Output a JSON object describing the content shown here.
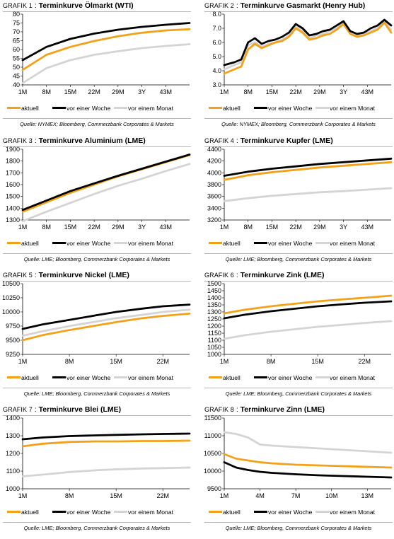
{
  "legend_labels": [
    "aktuell",
    "vor einer Woche",
    "vor einem Monat"
  ],
  "series_colors": {
    "aktuell": "#f4a11a",
    "vor einer Woche": "#000000",
    "vor einem Monat": "#d4d4d4"
  },
  "panels": [
    {
      "prefix": "GRAFIK 1",
      "title": "Terminkurve Ölmarkt (WTI)",
      "source": "Quelle: NYMEX; Bloomberg, Commerzbank Corporates & Markets",
      "chart_data": {
        "type": "line",
        "x": [
          1,
          8,
          15,
          22,
          29,
          36,
          43,
          50
        ],
        "x_tick_labels": [
          "1M",
          "8M",
          "15M",
          "22M",
          "29M",
          "3Y",
          "43M"
        ],
        "ylim": [
          40,
          80
        ],
        "y_ticks": [
          40,
          45,
          50,
          55,
          60,
          65,
          70,
          75,
          80
        ],
        "series": [
          {
            "name": "aktuell",
            "values": [
              48.5,
              57.0,
              61.5,
              64.8,
              67.5,
              69.5,
              70.8,
              71.5
            ]
          },
          {
            "name": "vor einer Woche",
            "values": [
              54.0,
              61.5,
              66.0,
              69.0,
              71.2,
              72.8,
              74.0,
              75.0
            ]
          },
          {
            "name": "vor einem Monat",
            "values": [
              41.0,
              49.5,
              54.0,
              57.0,
              59.0,
              60.8,
              62.0,
              63.0
            ]
          }
        ]
      }
    },
    {
      "prefix": "GRAFIK 2",
      "title": "Terminkurve Gasmarkt (Henry Hub)",
      "source": "Quelle: NYMEX; Bloomberg, Commerzbank Corporates & Markets",
      "chart_data": {
        "type": "line",
        "x": [
          1,
          4,
          6,
          8,
          10,
          12,
          14,
          16,
          18,
          20,
          22,
          24,
          26,
          28,
          30,
          32,
          34,
          36,
          38,
          40,
          42,
          44,
          46,
          48,
          50
        ],
        "x_tick_labels": [
          "1M",
          "8M",
          "15M",
          "22M",
          "29M",
          "3Y",
          "43M"
        ],
        "ylim": [
          3.0,
          8.0
        ],
        "y_ticks": [
          3.0,
          4.0,
          5.0,
          6.0,
          7.0,
          8.0
        ],
        "series": [
          {
            "name": "aktuell",
            "values": [
              3.8,
              4.1,
              4.3,
              5.5,
              5.9,
              5.6,
              5.8,
              6.0,
              6.1,
              6.4,
              7.0,
              6.7,
              6.2,
              6.3,
              6.5,
              6.6,
              6.9,
              7.3,
              6.6,
              6.4,
              6.5,
              6.7,
              6.9,
              7.4,
              6.7
            ]
          },
          {
            "name": "vor einer Woche",
            "values": [
              4.4,
              4.6,
              4.8,
              6.0,
              6.3,
              5.9,
              6.1,
              6.2,
              6.4,
              6.7,
              7.3,
              7.0,
              6.5,
              6.6,
              6.8,
              6.9,
              7.2,
              7.5,
              6.8,
              6.6,
              6.7,
              7.0,
              7.2,
              7.6,
              7.2
            ]
          },
          {
            "name": "vor einem Monat",
            "values": [
              4.1,
              4.4,
              4.6,
              5.8,
              6.0,
              5.7,
              5.9,
              6.0,
              6.2,
              6.5,
              7.1,
              6.8,
              6.3,
              6.5,
              6.6,
              6.8,
              7.0,
              7.4,
              6.7,
              6.5,
              6.6,
              6.8,
              7.0,
              7.5,
              6.9
            ]
          }
        ]
      }
    },
    {
      "prefix": "GRAFIK 3",
      "title": "Terminkurve Aluminium (LME)",
      "source": "Quelle: LME; Bloomberg, Commerzbank Corporates & Markets",
      "chart_data": {
        "type": "line",
        "x": [
          1,
          8,
          15,
          22,
          29,
          36,
          43,
          50
        ],
        "x_tick_labels": [
          "1M",
          "8M",
          "15M",
          "22M",
          "29M",
          "3Y",
          "43M"
        ],
        "ylim": [
          1300,
          1900
        ],
        "y_ticks": [
          1300,
          1400,
          1500,
          1600,
          1700,
          1800,
          1900
        ],
        "series": [
          {
            "name": "aktuell",
            "values": [
              1370,
              1450,
              1530,
              1600,
              1670,
              1730,
              1790,
              1850
            ]
          },
          {
            "name": "vor einer Woche",
            "values": [
              1385,
              1465,
              1545,
              1610,
              1675,
              1735,
              1795,
              1855
            ]
          },
          {
            "name": "vor einem Monat",
            "values": [
              1290,
              1370,
              1445,
              1520,
              1590,
              1650,
              1715,
              1775
            ]
          }
        ]
      }
    },
    {
      "prefix": "GRAFIK 4",
      "title": "Terminkurve Kupfer (LME)",
      "source": "Quelle: LME; Bloomberg, Commerzbank Corporates & Markets",
      "chart_data": {
        "type": "line",
        "x": [
          1,
          8,
          15,
          22,
          29,
          36,
          43,
          50
        ],
        "x_tick_labels": [
          "1M",
          "8M",
          "15M",
          "22M",
          "29M",
          "3Y",
          "43M"
        ],
        "ylim": [
          3200,
          4400
        ],
        "y_ticks": [
          3200,
          3400,
          3600,
          3800,
          4000,
          4200,
          4400
        ],
        "series": [
          {
            "name": "aktuell",
            "values": [
              3880,
              3960,
              4010,
              4050,
              4090,
              4120,
              4150,
              4180
            ]
          },
          {
            "name": "vor einer Woche",
            "values": [
              3950,
              4020,
              4070,
              4110,
              4150,
              4180,
              4210,
              4240
            ]
          },
          {
            "name": "vor einem Monat",
            "values": [
              3520,
              3570,
              3610,
              3640,
              3670,
              3690,
              3715,
              3740
            ]
          }
        ]
      }
    },
    {
      "prefix": "GRAFIK 5",
      "title": "Terminkurve Nickel (LME)",
      "source": "Quelle: LME; Bloomberg, Commerzbank Corporates & Markets",
      "chart_data": {
        "type": "line",
        "x": [
          1,
          4,
          8,
          12,
          15,
          19,
          22,
          26
        ],
        "x_tick_labels": [
          "1M",
          "8M",
          "15M",
          "22M"
        ],
        "x_tick_positions": [
          1,
          8,
          15,
          22
        ],
        "ylim": [
          9250,
          10500
        ],
        "y_ticks": [
          9250,
          9500,
          9750,
          10000,
          10250,
          10500
        ],
        "series": [
          {
            "name": "aktuell",
            "values": [
              9500,
              9590,
              9680,
              9760,
              9820,
              9890,
              9930,
              9970
            ]
          },
          {
            "name": "vor einer Woche",
            "values": [
              9700,
              9780,
              9860,
              9940,
              10000,
              10060,
              10100,
              10130
            ]
          },
          {
            "name": "vor einem Monat",
            "values": [
              9580,
              9660,
              9750,
              9830,
              9890,
              9950,
              10000,
              10040
            ]
          }
        ]
      }
    },
    {
      "prefix": "GRAFIK 6",
      "title": "Terminkurve Zink (LME)",
      "source": "Quelle: LME; Bloomberg, Commerzbank Corporates & Markets",
      "chart_data": {
        "type": "line",
        "x": [
          1,
          4,
          8,
          12,
          15,
          19,
          22,
          26
        ],
        "x_tick_labels": [
          "1M",
          "8M",
          "15M",
          "22M"
        ],
        "x_tick_positions": [
          1,
          8,
          15,
          22
        ],
        "ylim": [
          1000,
          1500
        ],
        "y_ticks": [
          1000,
          1050,
          1100,
          1150,
          1200,
          1250,
          1300,
          1350,
          1400,
          1450,
          1500
        ],
        "series": [
          {
            "name": "aktuell",
            "values": [
              1290,
              1315,
              1340,
              1360,
              1375,
              1390,
              1400,
              1415
            ]
          },
          {
            "name": "vor einer Woche",
            "values": [
              1255,
              1280,
              1305,
              1325,
              1340,
              1355,
              1365,
              1375
            ]
          },
          {
            "name": "vor einem Monat",
            "values": [
              1110,
              1135,
              1160,
              1180,
              1195,
              1210,
              1222,
              1235
            ]
          }
        ]
      }
    },
    {
      "prefix": "GRAFIK 7",
      "title": "Terminkurve Blei (LME)",
      "source": "Quelle: LME; Bloomberg, Commerzbank Corporates & Markets",
      "chart_data": {
        "type": "line",
        "x": [
          1,
          4,
          8,
          12,
          15,
          19,
          22,
          26
        ],
        "x_tick_labels": [
          "1M",
          "8M",
          "15M",
          "22M"
        ],
        "x_tick_positions": [
          1,
          8,
          15,
          22
        ],
        "ylim": [
          1000,
          1400
        ],
        "y_ticks": [
          1000,
          1100,
          1200,
          1300,
          1400
        ],
        "series": [
          {
            "name": "aktuell",
            "values": [
              1240,
              1255,
              1265,
              1268,
              1268,
              1270,
              1270,
              1272
            ]
          },
          {
            "name": "vor einer Woche",
            "values": [
              1280,
              1290,
              1298,
              1302,
              1305,
              1308,
              1310,
              1312
            ]
          },
          {
            "name": "vor einem Monat",
            "values": [
              1070,
              1080,
              1095,
              1105,
              1110,
              1115,
              1117,
              1120
            ]
          }
        ]
      }
    },
    {
      "prefix": "GRAFIK 8",
      "title": "Terminkurve Zinn (LME)",
      "source": "Quelle: LME; Bloomberg, Commerzbank Corporates & Markets",
      "chart_data": {
        "type": "line",
        "x": [
          1,
          2,
          3,
          4,
          5,
          7,
          9,
          11,
          13,
          15
        ],
        "x_tick_labels": [
          "1M",
          "4M",
          "7M",
          "10M",
          "13M"
        ],
        "x_tick_positions": [
          1,
          4,
          7,
          10,
          13
        ],
        "ylim": [
          9500,
          11500
        ],
        "y_ticks": [
          9500,
          10000,
          10500,
          11000,
          11500
        ],
        "series": [
          {
            "name": "aktuell",
            "values": [
              10480,
              10350,
              10300,
              10250,
              10220,
              10180,
              10160,
              10140,
              10120,
              10100
            ]
          },
          {
            "name": "vor einer Woche",
            "values": [
              10250,
              10100,
              10030,
              9980,
              9950,
              9910,
              9880,
              9860,
              9840,
              9820
            ]
          },
          {
            "name": "vor einem Monat",
            "values": [
              11100,
              11050,
              10950,
              10750,
              10720,
              10680,
              10640,
              10600,
              10560,
              10520
            ]
          }
        ]
      }
    }
  ]
}
